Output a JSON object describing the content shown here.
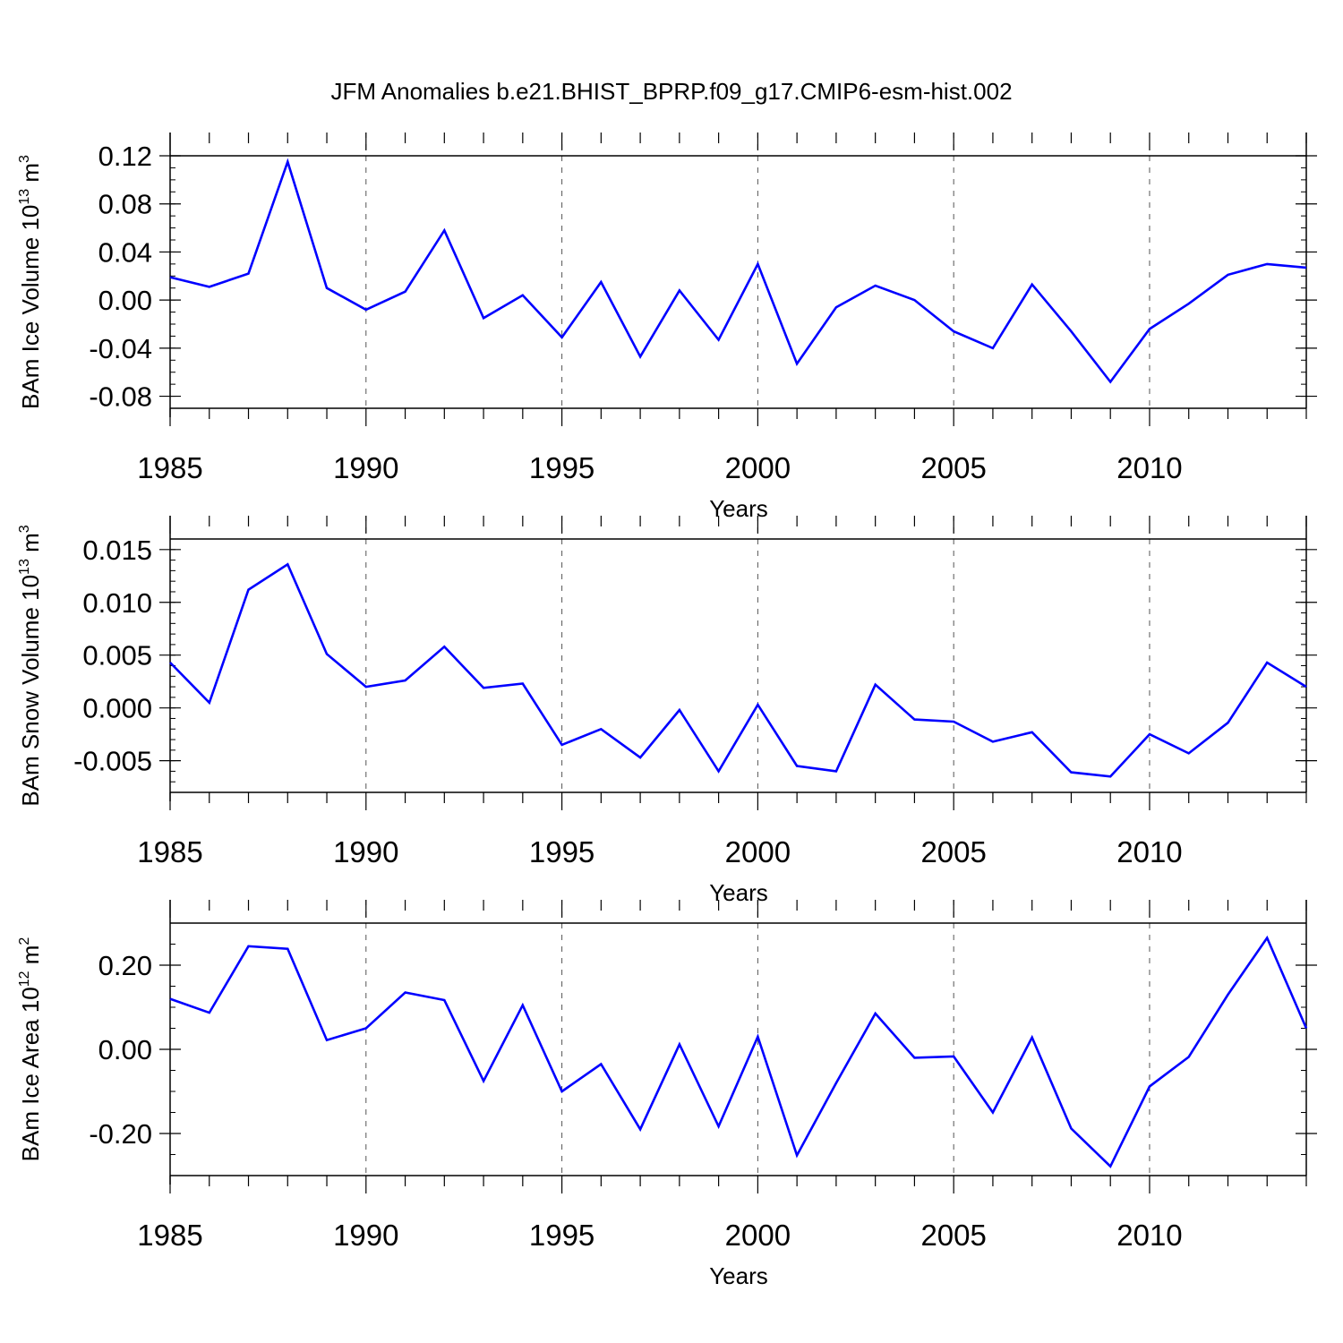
{
  "title": "JFM Anomalies b.e21.BHIST_BPRP.f09_g17.CMIP6-esm-hist.002",
  "colors": {
    "line": "#0000ff",
    "frame": "#000000",
    "grid": "#555555"
  },
  "chart_data": [
    {
      "type": "line",
      "ylabel_main": "BAm Ice Volume 10",
      "ylabel_exp": "13",
      "ylabel_unit": " m",
      "ylabel_unit_exp": "3",
      "xlabel": "Years",
      "xlim": [
        1985,
        2014
      ],
      "ylim": [
        -0.09,
        0.12
      ],
      "yticks": [
        -0.08,
        -0.04,
        0.0,
        0.04,
        0.08,
        0.12
      ],
      "ytick_labels": [
        "-0.08",
        "-0.04",
        "0.00",
        "0.04",
        "0.08",
        "0.12"
      ],
      "yminor_step": 0.01,
      "xticks": [
        1985,
        1990,
        1995,
        2000,
        2005,
        2010
      ],
      "xtick_labels": [
        "1985",
        "1990",
        "1995",
        "2000",
        "2005",
        "2010"
      ],
      "x": [
        1985,
        1986,
        1987,
        1988,
        1989,
        1990,
        1991,
        1992,
        1993,
        1994,
        1995,
        1996,
        1997,
        1998,
        1999,
        2000,
        2001,
        2002,
        2003,
        2004,
        2005,
        2006,
        2007,
        2008,
        2009,
        2010,
        2011,
        2012,
        2013,
        2014
      ],
      "values": [
        0.019,
        0.011,
        0.022,
        0.115,
        0.01,
        -0.008,
        0.007,
        0.058,
        -0.015,
        0.004,
        -0.031,
        0.015,
        -0.047,
        0.008,
        -0.033,
        0.03,
        -0.053,
        -0.006,
        0.012,
        0.0,
        -0.026,
        -0.04,
        0.013,
        -0.026,
        -0.068,
        -0.024,
        -0.003,
        0.021,
        0.03,
        0.027
      ]
    },
    {
      "type": "line",
      "ylabel_main": "BAm Snow Volume 10",
      "ylabel_exp": "13",
      "ylabel_unit": " m",
      "ylabel_unit_exp": "3",
      "xlabel": "Years",
      "xlim": [
        1985,
        2014
      ],
      "ylim": [
        -0.008,
        0.016
      ],
      "yticks": [
        -0.005,
        0.0,
        0.005,
        0.01,
        0.015
      ],
      "ytick_labels": [
        "-0.005",
        "0.000",
        "0.005",
        "0.010",
        "0.015"
      ],
      "yminor_step": 0.001,
      "xticks": [
        1985,
        1990,
        1995,
        2000,
        2005,
        2010
      ],
      "xtick_labels": [
        "1985",
        "1990",
        "1995",
        "2000",
        "2005",
        "2010"
      ],
      "x": [
        1985,
        1986,
        1987,
        1988,
        1989,
        1990,
        1991,
        1992,
        1993,
        1994,
        1995,
        1996,
        1997,
        1998,
        1999,
        2000,
        2001,
        2002,
        2003,
        2004,
        2005,
        2006,
        2007,
        2008,
        2009,
        2010,
        2011,
        2012,
        2013,
        2014
      ],
      "values": [
        0.0043,
        0.0005,
        0.0112,
        0.0136,
        0.0051,
        0.002,
        0.0026,
        0.0058,
        0.0019,
        0.0023,
        -0.0035,
        -0.002,
        -0.0047,
        -0.0002,
        -0.006,
        0.0003,
        -0.0055,
        -0.006,
        0.0022,
        -0.0011,
        -0.0013,
        -0.0032,
        -0.0023,
        -0.0061,
        -0.0065,
        -0.0025,
        -0.0043,
        -0.0014,
        0.0043,
        0.002
      ]
    },
    {
      "type": "line",
      "ylabel_main": "BAm Ice Area 10",
      "ylabel_exp": "12",
      "ylabel_unit": " m",
      "ylabel_unit_exp": "2",
      "xlabel": "Years",
      "xlim": [
        1985,
        2014
      ],
      "ylim": [
        -0.3,
        0.3
      ],
      "yticks": [
        -0.2,
        0.0,
        0.2
      ],
      "ytick_labels": [
        "-0.20",
        "0.00",
        "0.20"
      ],
      "yminor_step": 0.05,
      "xticks": [
        1985,
        1990,
        1995,
        2000,
        2005,
        2010
      ],
      "xtick_labels": [
        "1985",
        "1990",
        "1995",
        "2000",
        "2005",
        "2010"
      ],
      "x": [
        1985,
        1986,
        1987,
        1988,
        1989,
        1990,
        1991,
        1992,
        1993,
        1994,
        1995,
        1996,
        1997,
        1998,
        1999,
        2000,
        2001,
        2002,
        2003,
        2004,
        2005,
        2006,
        2007,
        2008,
        2009,
        2010,
        2011,
        2012,
        2013,
        2014
      ],
      "values": [
        0.12,
        0.087,
        0.245,
        0.239,
        0.022,
        0.05,
        0.135,
        0.117,
        -0.075,
        0.105,
        -0.1,
        -0.035,
        -0.19,
        0.012,
        -0.183,
        0.03,
        -0.252,
        -0.08,
        0.085,
        -0.02,
        -0.017,
        -0.15,
        0.028,
        -0.188,
        -0.278,
        -0.088,
        -0.018,
        0.13,
        0.265,
        0.05
      ]
    }
  ]
}
